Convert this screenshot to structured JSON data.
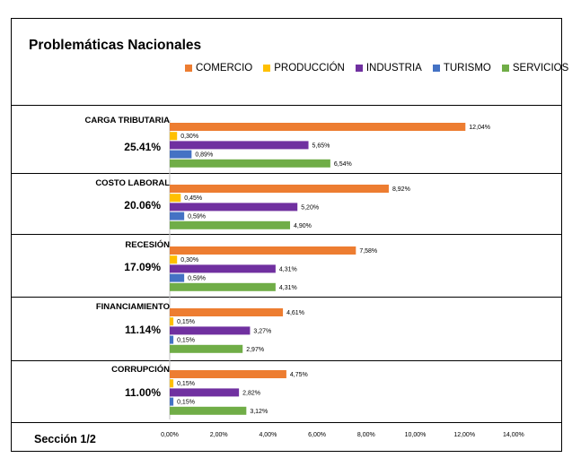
{
  "chart_data": {
    "type": "bar",
    "orientation": "horizontal",
    "title": "Problemáticas Nacionales",
    "footer": "Sección 1/2",
    "legend_position": "top-right",
    "xlim": [
      0,
      14
    ],
    "x_ticks": [
      "0,00%",
      "2,00%",
      "4,00%",
      "6,00%",
      "8,00%",
      "10,00%",
      "12,00%",
      "14,00%"
    ],
    "categories": [
      {
        "name": "CARGA TRIBUTARIA",
        "share": "25.41%"
      },
      {
        "name": "COSTO LABORAL",
        "share": "20.06%"
      },
      {
        "name": "RECESIÓN",
        "share": "17.09%"
      },
      {
        "name": "FINANCIAMIENTO",
        "share": "11.14%"
      },
      {
        "name": "CORRUPCIÓN",
        "share": "11.00%"
      }
    ],
    "series": [
      {
        "name": "COMERCIO",
        "color": "#ED7D31",
        "values": [
          12.04,
          8.92,
          7.58,
          4.61,
          4.75
        ],
        "labels": [
          "12,04%",
          "8,92%",
          "7,58%",
          "4,61%",
          "4,75%"
        ]
      },
      {
        "name": "PRODUCCIÓN",
        "color": "#FFC000",
        "values": [
          0.3,
          0.45,
          0.3,
          0.15,
          0.15
        ],
        "labels": [
          "0,30%",
          "0,45%",
          "0,30%",
          "0,15%",
          "0,15%"
        ]
      },
      {
        "name": "INDUSTRIA",
        "color": "#7030A0",
        "values": [
          5.65,
          5.2,
          4.31,
          3.27,
          2.82
        ],
        "labels": [
          "5,65%",
          "5,20%",
          "4,31%",
          "3,27%",
          "2,82%"
        ]
      },
      {
        "name": "TURISMO",
        "color": "#4472C4",
        "values": [
          0.89,
          0.59,
          0.59,
          0.15,
          0.15
        ],
        "labels": [
          "0,89%",
          "0,59%",
          "0,59%",
          "0,15%",
          "0,15%"
        ]
      },
      {
        "name": "SERVICIOS",
        "color": "#70AD47",
        "values": [
          6.54,
          4.9,
          4.31,
          2.97,
          3.12
        ],
        "labels": [
          "6,54%",
          "4,90%",
          "4,31%",
          "2,97%",
          "3,12%"
        ]
      }
    ]
  }
}
